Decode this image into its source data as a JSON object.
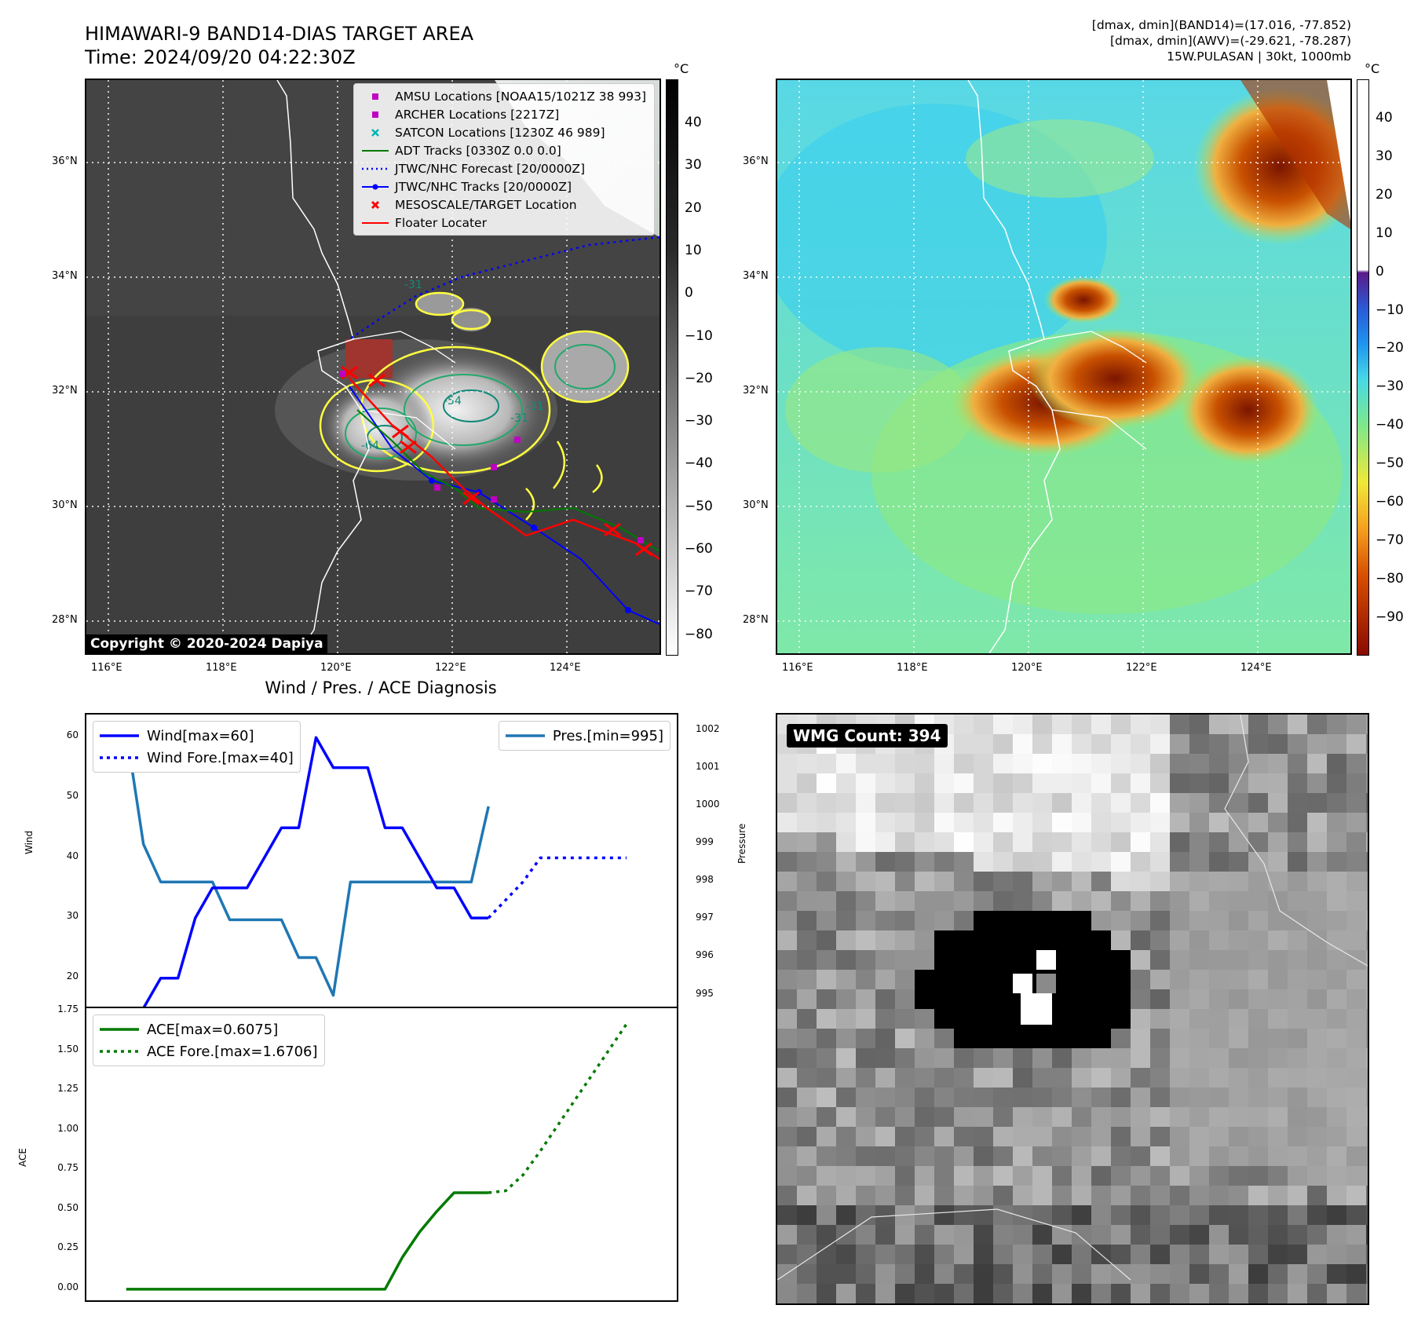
{
  "header": {
    "title_line1": "HIMAWARI-9 BAND14-DIAS TARGET AREA",
    "title_line2": "Time: 2024/09/20 04:22:30Z",
    "info_line1": "[dmax, dmin](BAND14)=(17.016, -77.852)",
    "info_line2": "[dmax, dmin](AWV)=(-29.621, -78.287)",
    "info_line3": "15W.PULASAN | 30kt, 1000mb"
  },
  "map": {
    "lon_labels": [
      "116°E",
      "118°E",
      "120°E",
      "122°E",
      "124°E"
    ],
    "lat_labels": [
      "36°N",
      "34°N",
      "32°N",
      "30°N",
      "28°N"
    ],
    "copyright": "Copyright © 2020-2024 Dapiya",
    "contour_labels": [
      "-31",
      "-31",
      "-54",
      "-31",
      "-64"
    ],
    "legend": [
      {
        "label": "AMSU Locations [NOAA15/1021Z 38 993]",
        "color": "#c000c0",
        "symbol": "square"
      },
      {
        "label": "ARCHER Locations [2217Z]",
        "color": "#c000c0",
        "symbol": "square"
      },
      {
        "label": "SATCON Locations [1230Z 46 989]",
        "color": "#00b5b5",
        "symbol": "x"
      },
      {
        "label": "ADT Tracks [0330Z 0.0 0.0]",
        "color": "#007a00",
        "symbol": "line"
      },
      {
        "label": "JTWC/NHC Forecast [20/0000Z]",
        "color": "#0000ff",
        "symbol": "dotted"
      },
      {
        "label": "JTWC/NHC Tracks [20/0000Z]",
        "color": "#0000ff",
        "symbol": "line-dot"
      },
      {
        "label": "MESOSCALE/TARGET Location",
        "color": "#ff0000",
        "symbol": "x"
      },
      {
        "label": "Floater Locater",
        "color": "#ff0000",
        "symbol": "line"
      }
    ]
  },
  "colorbar_gray": {
    "unit": "°C",
    "ticks": [
      "40",
      "30",
      "20",
      "10",
      "0",
      "−10",
      "−20",
      "−30",
      "−40",
      "−50",
      "−60",
      "−70",
      "−80"
    ]
  },
  "colorbar_awv": {
    "unit": "°C",
    "ticks": [
      "40",
      "30",
      "20",
      "10",
      "0",
      "−10",
      "−20",
      "−30",
      "−40",
      "−50",
      "−60",
      "−70",
      "−80",
      "−90"
    ]
  },
  "diag": {
    "title": "Wind / Pres. / ACE Diagnosis",
    "wind_ylabel": "Wind",
    "pres_ylabel": "Pressure",
    "ace_ylabel": "ACE",
    "legend_wind": "Wind[max=60]",
    "legend_wind_fore": "Wind Fore.[max=40]",
    "legend_pres": "Pres.[min=995]",
    "legend_ace": "ACE[max=0.6075]",
    "legend_ace_fore": "ACE Fore.[max=1.6706]",
    "wind_ticks": [
      "60",
      "50",
      "40",
      "30",
      "20"
    ],
    "pres_ticks": [
      "1002",
      "1001",
      "1000",
      "999",
      "998",
      "997",
      "996",
      "995"
    ],
    "ace_ticks": [
      "1.75",
      "1.50",
      "1.25",
      "1.00",
      "0.75",
      "0.50",
      "0.25",
      "0.00"
    ]
  },
  "wmg": {
    "label": "WMG Count: 394"
  },
  "chart_data": [
    {
      "type": "line",
      "title": "Wind / Pres. / ACE Diagnosis",
      "ylabel": "Wind",
      "ylim": [
        15,
        62
      ],
      "series": [
        {
          "name": "Wind[max=60]",
          "x": [
            0,
            1,
            2,
            3,
            4,
            5,
            6,
            7,
            8,
            9,
            10,
            11,
            12,
            13,
            14,
            15,
            16,
            17,
            18,
            19,
            20,
            21
          ],
          "values": [
            15,
            15,
            20,
            20,
            30,
            35,
            35,
            35,
            40,
            45,
            45,
            60,
            55,
            55,
            55,
            45,
            45,
            40,
            35,
            35,
            30,
            30
          ]
        },
        {
          "name": "Wind Fore.[max=40]",
          "x": [
            21,
            22,
            23,
            24,
            25,
            26,
            27,
            28,
            29
          ],
          "values": [
            30,
            33,
            36,
            40,
            40,
            40,
            40,
            40,
            40
          ]
        }
      ]
    },
    {
      "type": "line",
      "ylabel": "Pressure",
      "ylim": [
        994.7,
        1002.1
      ],
      "series": [
        {
          "name": "Pres.[min=995]",
          "x": [
            0,
            1,
            2,
            3,
            4,
            5,
            6,
            7,
            8,
            9,
            10,
            11,
            12,
            13,
            14,
            15,
            16,
            17,
            18,
            19,
            20,
            21
          ],
          "values": [
            1002,
            999,
            998,
            998,
            998,
            998,
            997,
            997,
            997,
            997,
            996,
            996,
            995,
            998,
            998,
            998,
            998,
            998,
            998,
            998,
            998,
            1000
          ]
        }
      ]
    },
    {
      "type": "line",
      "ylabel": "ACE",
      "ylim": [
        -0.06,
        1.75
      ],
      "series": [
        {
          "name": "ACE[max=0.6075]",
          "x": [
            0,
            1,
            2,
            3,
            4,
            5,
            6,
            7,
            8,
            9,
            10,
            11,
            12,
            13,
            14,
            15,
            16,
            17,
            18,
            19,
            20,
            21
          ],
          "values": [
            0,
            0,
            0,
            0,
            0,
            0,
            0,
            0,
            0,
            0,
            0,
            0,
            0,
            0,
            0,
            0,
            0.2,
            0.36,
            0.49,
            0.6075,
            0.6075,
            0.6075
          ]
        },
        {
          "name": "ACE Fore.[max=1.6706]",
          "x": [
            21,
            22,
            23,
            24,
            25,
            26,
            27,
            28,
            29
          ],
          "values": [
            0.6075,
            0.62,
            0.72,
            0.87,
            1.03,
            1.19,
            1.35,
            1.51,
            1.6706
          ]
        }
      ]
    }
  ]
}
